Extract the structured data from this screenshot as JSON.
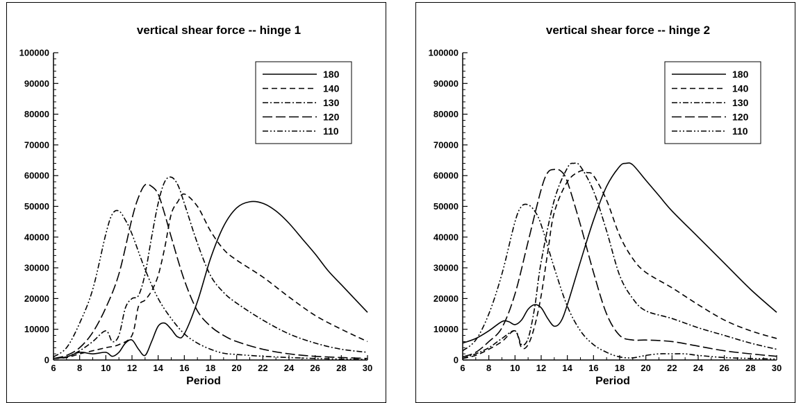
{
  "chart_data": [
    {
      "type": "line",
      "title": "vertical shear force -- hinge 1",
      "xlabel": "Period",
      "ylabel": "",
      "xlim": [
        6,
        30
      ],
      "ylim": [
        0,
        100000
      ],
      "xticks": [
        "6",
        "8",
        "10",
        "12",
        "14",
        "16",
        "18",
        "20",
        "22",
        "24",
        "26",
        "28",
        "30"
      ],
      "yticks": [
        "0",
        "10000",
        "20000",
        "30000",
        "40000",
        "50000",
        "60000",
        "70000",
        "80000",
        "90000",
        "100000"
      ],
      "legend_position": "top-right",
      "grid": false,
      "series": [
        {
          "name": "180",
          "dash": "solid",
          "x": [
            6,
            7,
            8,
            9,
            10,
            10.5,
            11,
            11.5,
            12,
            12.5,
            13,
            13.5,
            14,
            14.5,
            15,
            15.5,
            16,
            17,
            18,
            19,
            20,
            21,
            22,
            23,
            24,
            25,
            26,
            27,
            28,
            29,
            30
          ],
          "y": [
            500,
            1000,
            2500,
            2000,
            2500,
            1200,
            2500,
            5500,
            6500,
            3500,
            1500,
            6000,
            11000,
            12000,
            10000,
            7500,
            8500,
            19000,
            33000,
            43500,
            49500,
            51500,
            51000,
            48500,
            44500,
            39500,
            34500,
            29000,
            24500,
            20000,
            15500
          ]
        },
        {
          "name": "140",
          "dash": "dash",
          "x": [
            6,
            7,
            8,
            9,
            10,
            11,
            12,
            12.5,
            13,
            13.5,
            14,
            14.5,
            15,
            15.5,
            16,
            17,
            18,
            19,
            20,
            22,
            24,
            26,
            28,
            30
          ],
          "y": [
            500,
            800,
            2000,
            3000,
            4000,
            5000,
            8000,
            17500,
            19500,
            22500,
            27500,
            36500,
            47500,
            51500,
            54000,
            50000,
            42000,
            36000,
            32500,
            27000,
            20500,
            14500,
            10000,
            6000
          ]
        },
        {
          "name": "130",
          "dash": "dashdot",
          "x": [
            6,
            7,
            8,
            9,
            10,
            10.5,
            11,
            11.5,
            12,
            12.5,
            13,
            13.5,
            14,
            14.5,
            15,
            15.5,
            16,
            17,
            18,
            19,
            20,
            22,
            24,
            26,
            28,
            30
          ],
          "y": [
            500,
            1000,
            3000,
            6000,
            9500,
            6000,
            8000,
            17000,
            20000,
            21000,
            28000,
            40000,
            51000,
            58000,
            59500,
            57000,
            51000,
            38000,
            27500,
            22000,
            18500,
            13000,
            8500,
            5500,
            3500,
            2500
          ]
        },
        {
          "name": "120",
          "dash": "longdash",
          "x": [
            6,
            7,
            8,
            9,
            10,
            11,
            12,
            12.5,
            13,
            13.5,
            14,
            14.5,
            15,
            16,
            17,
            18,
            19,
            20,
            22,
            24,
            26,
            28,
            30
          ],
          "y": [
            500,
            1500,
            4000,
            9000,
            17000,
            28000,
            46000,
            53000,
            57000,
            56500,
            54000,
            47500,
            40000,
            26000,
            16000,
            11000,
            8000,
            6000,
            3500,
            2000,
            1200,
            800,
            500
          ]
        },
        {
          "name": "110",
          "dash": "dashdotdot",
          "x": [
            6,
            7,
            8,
            9,
            10,
            10.5,
            11,
            11.5,
            12,
            13,
            14,
            15,
            16,
            17,
            18,
            19,
            20,
            22,
            24,
            26,
            28,
            30
          ],
          "y": [
            1000,
            4000,
            12000,
            23000,
            41000,
            47500,
            48500,
            45500,
            41000,
            29500,
            20000,
            13500,
            8500,
            5500,
            3500,
            2200,
            1800,
            1200,
            800,
            500,
            300,
            200
          ]
        }
      ]
    },
    {
      "type": "line",
      "title": "vertical shear force -- hinge 2",
      "xlabel": "Period",
      "ylabel": "",
      "xlim": [
        6,
        30
      ],
      "ylim": [
        0,
        100000
      ],
      "xticks": [
        "6",
        "8",
        "10",
        "12",
        "14",
        "16",
        "18",
        "20",
        "22",
        "24",
        "26",
        "28",
        "30"
      ],
      "yticks": [
        "0",
        "10000",
        "20000",
        "30000",
        "40000",
        "50000",
        "60000",
        "70000",
        "80000",
        "90000",
        "100000"
      ],
      "legend_position": "top-right",
      "grid": false,
      "series": [
        {
          "name": "180",
          "dash": "solid",
          "x": [
            6,
            7,
            8,
            9,
            9.5,
            10,
            10.5,
            11,
            11.5,
            12,
            12.5,
            13,
            13.5,
            14,
            15,
            16,
            17,
            18,
            18.5,
            19,
            20,
            21,
            22,
            24,
            26,
            28,
            30
          ],
          "y": [
            5500,
            7000,
            9500,
            12500,
            12500,
            11500,
            13000,
            16500,
            18000,
            17000,
            13500,
            11000,
            12500,
            18000,
            32000,
            45500,
            56500,
            63000,
            64000,
            63500,
            58500,
            53500,
            48500,
            40000,
            31500,
            23000,
            15500
          ]
        },
        {
          "name": "140",
          "dash": "dash",
          "x": [
            6,
            7,
            8,
            9,
            10,
            10.5,
            11,
            11.5,
            12,
            12.5,
            13,
            14,
            15,
            15.5,
            16,
            17,
            18,
            19,
            20,
            22,
            24,
            26,
            28,
            30
          ],
          "y": [
            500,
            1500,
            3500,
            6000,
            9500,
            4000,
            5000,
            11000,
            21000,
            35000,
            48000,
            58000,
            61500,
            61000,
            60000,
            52000,
            40500,
            33000,
            28500,
            23500,
            18000,
            13000,
            9500,
            7000
          ]
        },
        {
          "name": "130",
          "dash": "dashdot",
          "x": [
            6,
            7,
            8,
            9,
            10,
            10.5,
            11,
            11.5,
            12,
            13,
            14,
            14.5,
            15,
            16,
            17,
            18,
            19,
            20,
            22,
            24,
            26,
            28,
            30
          ],
          "y": [
            500,
            2000,
            4000,
            7000,
            9500,
            5000,
            7000,
            17000,
            32000,
            52000,
            62500,
            64000,
            63000,
            55000,
            42000,
            27500,
            20000,
            16000,
            13500,
            10500,
            8000,
            5500,
            3500
          ]
        },
        {
          "name": "120",
          "dash": "longdash",
          "x": [
            6,
            7,
            8,
            9,
            10,
            11,
            12,
            12.5,
            13,
            13.5,
            14,
            15,
            16,
            17,
            18,
            19,
            20,
            22,
            24,
            26,
            28,
            30
          ],
          "y": [
            1000,
            2500,
            6000,
            10500,
            21500,
            38500,
            55500,
            61000,
            62000,
            61500,
            58000,
            44000,
            28500,
            15000,
            8000,
            6500,
            6500,
            6000,
            4500,
            3000,
            2000,
            1200
          ]
        },
        {
          "name": "110",
          "dash": "dashdotdot",
          "x": [
            6,
            7,
            8,
            9,
            10,
            10.5,
            11,
            11.5,
            12,
            13,
            14,
            15,
            16,
            17,
            18,
            19,
            20,
            21,
            22,
            23,
            24,
            26,
            28,
            30
          ],
          "y": [
            3000,
            6500,
            15000,
            28000,
            45000,
            50000,
            50500,
            48500,
            44000,
            30000,
            17500,
            9500,
            5000,
            2500,
            1000,
            700,
            1500,
            2000,
            2000,
            2000,
            1500,
            800,
            500,
            300
          ]
        }
      ]
    }
  ]
}
